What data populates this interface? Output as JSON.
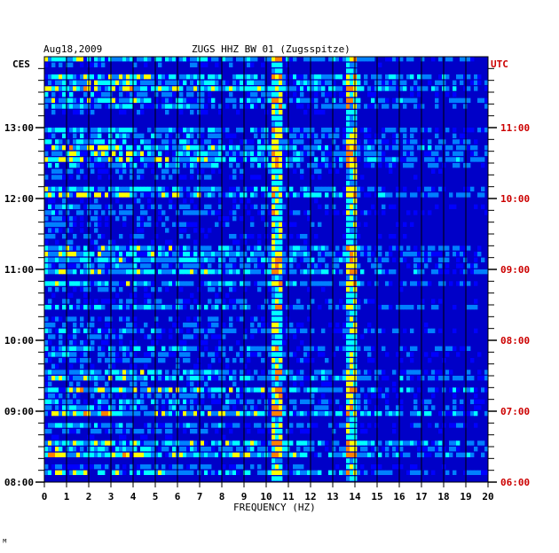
{
  "chart_data": {
    "type": "heatmap",
    "date_label": "Aug18,2009",
    "title": "ZUGS HHZ BW 01 (Zugsspitze)",
    "left_axis_label": "CES",
    "right_axis_label": "UTC",
    "xlabel": "FREQUENCY (HZ)",
    "footer_mark": "ᴹ",
    "xlim": [
      0,
      20
    ],
    "x_ticks": [
      "0",
      "1",
      "2",
      "3",
      "4",
      "5",
      "6",
      "7",
      "8",
      "9",
      "10",
      "11",
      "12",
      "13",
      "14",
      "15",
      "16",
      "17",
      "18",
      "19",
      "20"
    ],
    "left_time_ticks": [
      {
        "label": "08:00",
        "hours_from_bottom": 0
      },
      {
        "label": "09:00",
        "hours_from_bottom": 1
      },
      {
        "label": "10:00",
        "hours_from_bottom": 2
      },
      {
        "label": "11:00",
        "hours_from_bottom": 3
      },
      {
        "label": "12:00",
        "hours_from_bottom": 4
      },
      {
        "label": "13:00",
        "hours_from_bottom": 5
      }
    ],
    "right_time_ticks": [
      {
        "label": "06:00",
        "hours_from_bottom": 0
      },
      {
        "label": "07:00",
        "hours_from_bottom": 1
      },
      {
        "label": "08:00",
        "hours_from_bottom": 2
      },
      {
        "label": "09:00",
        "hours_from_bottom": 3
      },
      {
        "label": "10:00",
        "hours_from_bottom": 4
      },
      {
        "label": "11:00",
        "hours_from_bottom": 5
      }
    ],
    "time_span_hours": 6,
    "minor_ticks_per_hour": 6,
    "colormap": [
      "#000080",
      "#0000ff",
      "#0080ff",
      "#00ffff",
      "#ffff00",
      "#ff8000",
      "#ff0000"
    ],
    "spectral_lines_hz": [
      10.5,
      13.8
    ],
    "left_label_color": "#000000",
    "right_label_color": "#cc0000"
  }
}
